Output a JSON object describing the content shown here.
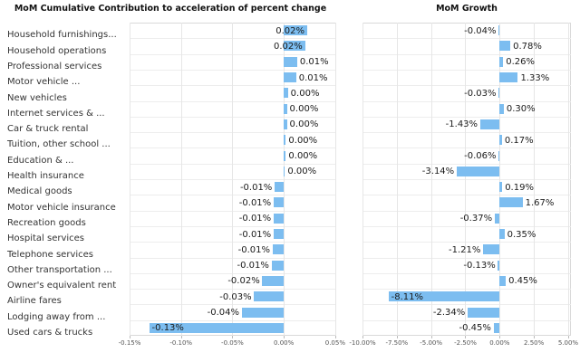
{
  "colors": {
    "bar": "#7CBDF0",
    "grid_line": "#e6e6e6",
    "row_line": "#ededed",
    "plot_border": "#d9d9d9",
    "title_text": "#111111",
    "label_text": "#333333",
    "tick_text": "#555555"
  },
  "chart_data": [
    {
      "type": "bar",
      "orientation": "horizontal",
      "title": "MoM Cumulative Contribution to acceleration of percent change",
      "categories": [
        "Household furnishings...",
        "Household operations",
        "Professional services",
        "Motor vehicle ...",
        "New vehicles",
        "Internet services & ...",
        "Car & truck rental",
        "Tuition, other school ...",
        "Education & ...",
        "Health insurance",
        "Medical goods",
        "Motor vehicle insurance",
        "Recreation goods",
        "Hospital services",
        "Telephone services",
        "Other transportation ...",
        "Owner's equivalent rent",
        "Airline fares",
        "Lodging away from ...",
        "Used cars & trucks"
      ],
      "value_labels": [
        "0.02%",
        "0.02%",
        "0.01%",
        "0.01%",
        "0.00%",
        "0.00%",
        "0.00%",
        "0.00%",
        "0.00%",
        "0.00%",
        "-0.01%",
        "-0.01%",
        "-0.01%",
        "-0.01%",
        "-0.01%",
        "-0.01%",
        "-0.02%",
        "-0.03%",
        "-0.04%",
        "-0.13%"
      ],
      "values": [
        0.023,
        0.021,
        0.013,
        0.012,
        0.004,
        0.003,
        0.003,
        0.002,
        0.002,
        0.001,
        -0.009,
        -0.01,
        -0.01,
        -0.01,
        -0.011,
        -0.012,
        -0.021,
        -0.029,
        -0.041,
        -0.131
      ],
      "xlim": [
        -0.15,
        0.051
      ],
      "xticks": [
        {
          "value": -0.15,
          "label": "-0.15%"
        },
        {
          "value": -0.1,
          "label": "-0.10%"
        },
        {
          "value": -0.05,
          "label": "-0.05%"
        },
        {
          "value": 0.0,
          "label": "0.00%"
        },
        {
          "value": 0.05,
          "label": "0.05%"
        }
      ],
      "legend": "none",
      "grid": true
    },
    {
      "type": "bar",
      "orientation": "horizontal",
      "title": "MoM Growth",
      "categories_note": "rows share the category labels of the left chart",
      "value_labels": [
        "-0.04%",
        "0.78%",
        "0.26%",
        "1.33%",
        "-0.03%",
        "0.30%",
        "-1.43%",
        "0.17%",
        "-0.06%",
        "-3.14%",
        "0.19%",
        "1.67%",
        "-0.37%",
        "0.35%",
        "-1.21%",
        "-0.13%",
        "0.45%",
        "-8.11%",
        "-2.34%",
        "-0.45%"
      ],
      "values": [
        -0.04,
        0.78,
        0.26,
        1.33,
        -0.03,
        0.3,
        -1.43,
        0.17,
        -0.06,
        -3.14,
        0.19,
        1.67,
        -0.37,
        0.35,
        -1.21,
        -0.13,
        0.45,
        -8.11,
        -2.34,
        -0.45
      ],
      "xlim": [
        -10,
        5.2
      ],
      "xticks": [
        {
          "value": -10,
          "label": "-10.00%"
        },
        {
          "value": -7.5,
          "label": "-7.50%"
        },
        {
          "value": -5,
          "label": "-5.00%"
        },
        {
          "value": -2.5,
          "label": "-2.50%"
        },
        {
          "value": 0,
          "label": "0.00%"
        },
        {
          "value": 2.5,
          "label": "2.50%"
        },
        {
          "value": 5,
          "label": "5.00%"
        }
      ],
      "legend": "none",
      "grid": true
    }
  ]
}
